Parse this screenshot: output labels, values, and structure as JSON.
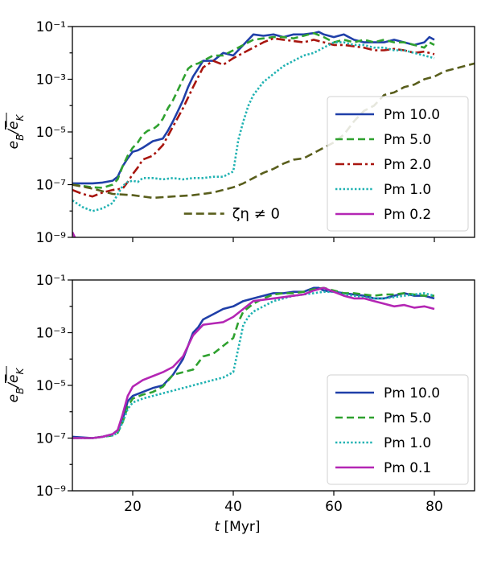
{
  "chart_data": [
    {
      "type": "line",
      "ylabel": "e_B/ē_K",
      "yscale": "log",
      "xlim": [
        8,
        88
      ],
      "ylim_exp": [
        -9,
        -1
      ],
      "yticks_exp": [
        -9,
        -7,
        -5,
        -3,
        -1
      ],
      "xticks": [
        20,
        40,
        60,
        80
      ],
      "show_xticklabels": false,
      "legend": "lower-right",
      "annotation": {
        "text": "ζη ≠ 0",
        "x": 31,
        "y_exp": -8.1
      },
      "series": [
        {
          "name": "Pm 10.0",
          "color": "#1f3fa8",
          "dash": "solid",
          "x": [
            8,
            12,
            14,
            16,
            17,
            18,
            19,
            20,
            21,
            22,
            24,
            26,
            27,
            28,
            29,
            30,
            31,
            32,
            33,
            34,
            36,
            38,
            40,
            42,
            44,
            46,
            48,
            50,
            52,
            54,
            56,
            57,
            58,
            60,
            62,
            64,
            66,
            68,
            70,
            72,
            74,
            76,
            78,
            79,
            80
          ],
          "y": [
            -6.95,
            -6.95,
            -6.92,
            -6.85,
            -6.7,
            -6.3,
            -6.0,
            -5.75,
            -5.7,
            -5.6,
            -5.35,
            -5.25,
            -4.95,
            -4.6,
            -4.2,
            -3.8,
            -3.3,
            -2.9,
            -2.6,
            -2.3,
            -2.3,
            -2.0,
            -2.1,
            -1.7,
            -1.3,
            -1.35,
            -1.3,
            -1.4,
            -1.3,
            -1.3,
            -1.25,
            -1.2,
            -1.3,
            -1.4,
            -1.3,
            -1.5,
            -1.6,
            -1.6,
            -1.6,
            -1.5,
            -1.6,
            -1.7,
            -1.6,
            -1.4,
            -1.5
          ]
        },
        {
          "name": "Pm 5.0",
          "color": "#2fa12f",
          "dash": "9 5",
          "x": [
            8,
            12,
            14,
            16,
            17,
            18,
            19,
            20,
            21,
            22,
            23,
            24,
            25,
            26,
            27,
            28,
            29,
            30,
            31,
            32,
            33,
            34,
            35,
            36,
            38,
            40,
            42,
            44,
            46,
            48,
            50,
            52,
            54,
            56,
            58,
            60,
            62,
            64,
            66,
            68,
            70,
            72,
            74,
            76,
            78,
            79,
            80
          ],
          "y": [
            -7.0,
            -7.1,
            -7.12,
            -7.0,
            -6.8,
            -6.3,
            -5.9,
            -5.6,
            -5.4,
            -5.1,
            -4.95,
            -4.9,
            -4.75,
            -4.5,
            -4.1,
            -3.8,
            -3.4,
            -3.0,
            -2.6,
            -2.45,
            -2.4,
            -2.3,
            -2.2,
            -2.1,
            -2.1,
            -1.9,
            -1.7,
            -1.5,
            -1.45,
            -1.4,
            -1.4,
            -1.45,
            -1.35,
            -1.25,
            -1.4,
            -1.6,
            -1.5,
            -1.6,
            -1.5,
            -1.6,
            -1.5,
            -1.6,
            -1.6,
            -1.7,
            -1.8,
            -1.6,
            -1.7
          ]
        },
        {
          "name": "Pm 2.0",
          "color": "#a8150e",
          "dash": "11 4 3 4",
          "x": [
            8,
            10,
            12,
            14,
            16,
            18,
            19,
            20,
            21,
            22,
            24,
            26,
            28,
            30,
            32,
            34,
            36,
            38,
            40,
            42,
            44,
            46,
            48,
            50,
            52,
            54,
            56,
            58,
            60,
            62,
            64,
            66,
            68,
            70,
            72,
            74,
            76,
            78,
            80
          ],
          "y": [
            -7.2,
            -7.35,
            -7.45,
            -7.3,
            -7.2,
            -7.15,
            -6.9,
            -6.6,
            -6.35,
            -6.05,
            -5.9,
            -5.5,
            -4.8,
            -4.1,
            -3.3,
            -2.55,
            -2.3,
            -2.45,
            -2.2,
            -2.0,
            -1.8,
            -1.6,
            -1.45,
            -1.5,
            -1.55,
            -1.6,
            -1.5,
            -1.6,
            -1.7,
            -1.7,
            -1.75,
            -1.8,
            -1.9,
            -1.9,
            -1.85,
            -1.9,
            -2.0,
            -1.95,
            -2.05
          ]
        },
        {
          "name": "Pm 1.0",
          "color": "#20b2b2",
          "dash": "2.4 2.4",
          "x": [
            8,
            10,
            12,
            14,
            16,
            18,
            19,
            20,
            21,
            22,
            24,
            26,
            28,
            30,
            32,
            34,
            36,
            38,
            40,
            41,
            42,
            43,
            44,
            46,
            48,
            50,
            52,
            54,
            56,
            58,
            60,
            62,
            64,
            66,
            68,
            70,
            72,
            74,
            76,
            78,
            80
          ],
          "y": [
            -7.6,
            -7.85,
            -8.0,
            -7.9,
            -7.7,
            -7.05,
            -6.9,
            -6.85,
            -6.9,
            -6.75,
            -6.75,
            -6.8,
            -6.75,
            -6.8,
            -6.75,
            -6.75,
            -6.7,
            -6.7,
            -6.5,
            -5.3,
            -4.6,
            -4.0,
            -3.6,
            -3.1,
            -2.8,
            -2.5,
            -2.3,
            -2.1,
            -2.0,
            -1.8,
            -1.6,
            -1.6,
            -1.7,
            -1.7,
            -1.8,
            -1.8,
            -1.9,
            -1.9,
            -2.0,
            -2.1,
            -2.2
          ]
        },
        {
          "name": "Pm 0.2",
          "color": "#b426b4",
          "dash": "solid",
          "x": [
            8,
            8.5
          ],
          "y": [
            -8.8,
            -9.0
          ]
        },
        {
          "name": "",
          "color": "#595e1c",
          "dash": "10 5",
          "x": [
            8,
            12,
            16,
            20,
            24,
            28,
            32,
            36,
            40,
            42,
            44,
            46,
            48,
            50,
            52,
            54,
            56,
            58,
            60,
            62,
            64,
            66,
            68,
            70,
            72,
            74,
            76,
            78,
            80,
            82,
            84,
            86,
            88
          ],
          "y": [
            -7.0,
            -7.15,
            -7.35,
            -7.4,
            -7.5,
            -7.45,
            -7.4,
            -7.3,
            -7.1,
            -6.95,
            -6.75,
            -6.55,
            -6.4,
            -6.2,
            -6.05,
            -6.0,
            -5.8,
            -5.6,
            -5.4,
            -5.1,
            -4.6,
            -4.2,
            -4.0,
            -3.6,
            -3.5,
            -3.3,
            -3.2,
            -3.0,
            -2.9,
            -2.7,
            -2.6,
            -2.5,
            -2.4
          ]
        }
      ]
    },
    {
      "type": "line",
      "ylabel": "e_B/ē_K",
      "xlabel": "t [Myr]",
      "yscale": "log",
      "xlim": [
        8,
        88
      ],
      "ylim_exp": [
        -9,
        -1
      ],
      "yticks_exp": [
        -9,
        -7,
        -5,
        -3,
        -1
      ],
      "xticks": [
        20,
        40,
        60,
        80
      ],
      "show_xticklabels": true,
      "legend": "lower-right",
      "series": [
        {
          "name": "Pm 10.0",
          "color": "#1f3fa8",
          "dash": "solid",
          "x": [
            8,
            12,
            14,
            16,
            17,
            18,
            19,
            20,
            22,
            24,
            26,
            28,
            30,
            31,
            32,
            33,
            34,
            36,
            38,
            40,
            42,
            44,
            46,
            48,
            50,
            52,
            54,
            56,
            57,
            58,
            60,
            62,
            64,
            66,
            68,
            70,
            72,
            74,
            76,
            78,
            80
          ],
          "y": [
            -6.95,
            -7.0,
            -6.95,
            -6.85,
            -6.7,
            -6.3,
            -5.6,
            -5.4,
            -5.25,
            -5.1,
            -5.0,
            -4.6,
            -4.0,
            -3.5,
            -3.0,
            -2.8,
            -2.5,
            -2.3,
            -2.1,
            -2.0,
            -1.8,
            -1.7,
            -1.6,
            -1.5,
            -1.5,
            -1.45,
            -1.45,
            -1.3,
            -1.3,
            -1.4,
            -1.45,
            -1.5,
            -1.55,
            -1.6,
            -1.7,
            -1.7,
            -1.6,
            -1.5,
            -1.6,
            -1.6,
            -1.7
          ]
        },
        {
          "name": "Pm 5.0",
          "color": "#2fa12f",
          "dash": "9 5",
          "x": [
            8,
            12,
            14,
            16,
            17,
            18,
            19,
            20,
            22,
            24,
            26,
            28,
            30,
            32,
            34,
            36,
            38,
            40,
            41,
            42,
            44,
            46,
            48,
            50,
            52,
            54,
            56,
            58,
            60,
            62,
            64,
            66,
            68,
            70,
            72,
            74,
            76,
            78,
            80
          ],
          "y": [
            -7.0,
            -7.0,
            -6.95,
            -6.9,
            -6.8,
            -6.4,
            -5.8,
            -5.5,
            -5.35,
            -5.25,
            -5.05,
            -4.6,
            -4.5,
            -4.4,
            -3.9,
            -3.8,
            -3.5,
            -3.2,
            -2.6,
            -2.2,
            -1.9,
            -1.7,
            -1.55,
            -1.5,
            -1.5,
            -1.45,
            -1.35,
            -1.3,
            -1.4,
            -1.5,
            -1.5,
            -1.55,
            -1.6,
            -1.55,
            -1.55,
            -1.5,
            -1.55,
            -1.6,
            -1.6
          ]
        },
        {
          "name": "Pm 1.0",
          "color": "#20b2b2",
          "dash": "2.4 2.4",
          "x": [
            8,
            12,
            14,
            16,
            17,
            18,
            19,
            20,
            22,
            24,
            26,
            28,
            30,
            32,
            34,
            36,
            38,
            40,
            41,
            42,
            43,
            44,
            46,
            48,
            50,
            52,
            54,
            56,
            58,
            60,
            62,
            64,
            66,
            68,
            70,
            72,
            74,
            76,
            78,
            80
          ],
          "y": [
            -7.0,
            -7.0,
            -6.95,
            -6.9,
            -6.8,
            -6.4,
            -5.9,
            -5.65,
            -5.5,
            -5.4,
            -5.3,
            -5.2,
            -5.1,
            -5.0,
            -4.9,
            -4.8,
            -4.7,
            -4.5,
            -3.6,
            -2.7,
            -2.4,
            -2.2,
            -2.0,
            -1.8,
            -1.7,
            -1.6,
            -1.55,
            -1.5,
            -1.45,
            -1.45,
            -1.55,
            -1.6,
            -1.65,
            -1.7,
            -1.7,
            -1.65,
            -1.6,
            -1.55,
            -1.5,
            -1.6
          ]
        },
        {
          "name": "Pm 0.1",
          "color": "#b426b4",
          "dash": "solid",
          "x": [
            8,
            12,
            14,
            16,
            17,
            18,
            19,
            20,
            22,
            24,
            26,
            28,
            30,
            32,
            34,
            36,
            38,
            40,
            42,
            44,
            46,
            48,
            50,
            52,
            54,
            56,
            58,
            60,
            62,
            64,
            66,
            68,
            70,
            72,
            74,
            76,
            78,
            80
          ],
          "y": [
            -7.0,
            -7.0,
            -6.95,
            -6.85,
            -6.7,
            -6.1,
            -5.4,
            -5.05,
            -4.8,
            -4.65,
            -4.5,
            -4.3,
            -3.9,
            -3.1,
            -2.7,
            -2.65,
            -2.6,
            -2.4,
            -2.1,
            -1.8,
            -1.75,
            -1.7,
            -1.65,
            -1.6,
            -1.55,
            -1.4,
            -1.3,
            -1.45,
            -1.6,
            -1.7,
            -1.7,
            -1.8,
            -1.9,
            -2.0,
            -1.95,
            -2.05,
            -2.0,
            -2.1
          ]
        }
      ]
    }
  ]
}
